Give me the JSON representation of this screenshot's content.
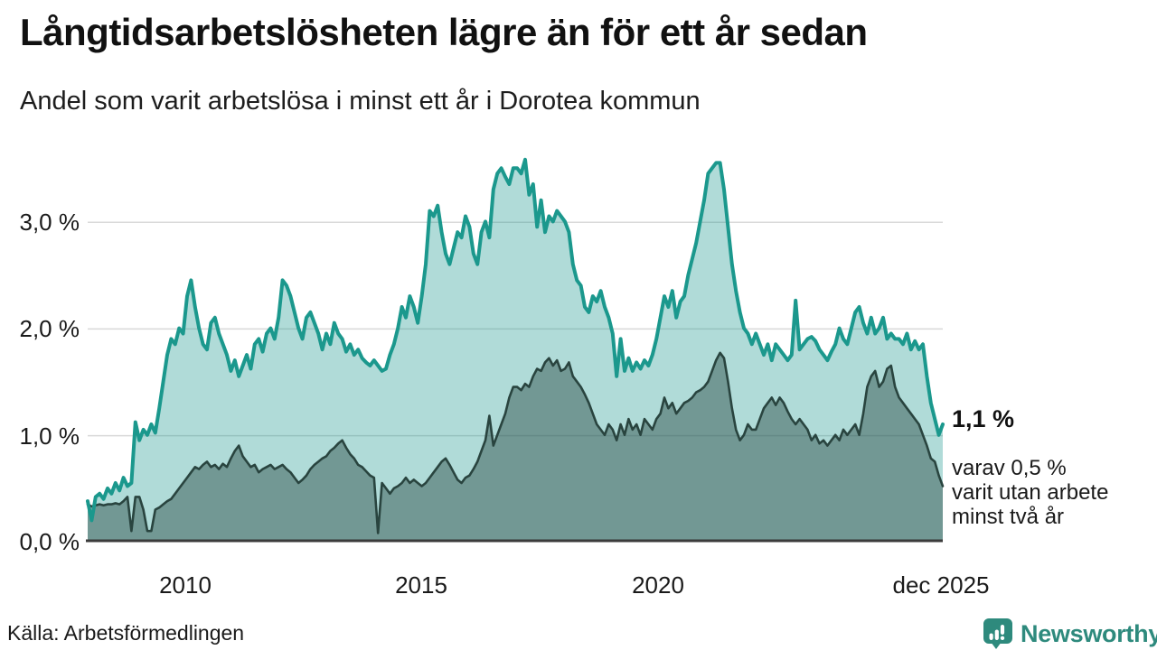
{
  "header": {
    "title": "Långtidsarbetslösheten lägre än för ett år sedan",
    "subtitle": "Andel som varit arbetslösa i minst ett år i Dorotea kommun"
  },
  "chart_data": {
    "type": "area",
    "title": "Långtidsarbetslösheten lägre än för ett år sedan",
    "subtitle": "Andel som varit arbetslösa i minst ett år i Dorotea kommun",
    "x_start": "2008-01",
    "x_end": "2025-12",
    "x_frequency": "monthly",
    "x_tick_labels": [
      "2010",
      "2015",
      "2020",
      "dec 2025"
    ],
    "y_tick_labels": [
      "3,0 %",
      "2,0 %",
      "1,0 %",
      "0,0 %"
    ],
    "y_ticks": [
      3.0,
      2.0,
      1.0,
      0.0
    ],
    "ylim": [
      0,
      3.7
    ],
    "grid": "horizontal",
    "legend_position": "none",
    "colors": {
      "total_line": "#1b988d",
      "total_fill": "rgba(29,153,142,0.35)",
      "twoyear_line": "#29443f",
      "twoyear_fill": "rgba(40,70,66,0.45)",
      "gridline": "#d9d9d9",
      "axis": "#3b3b3b"
    },
    "series": [
      {
        "name": "Arbetslösa minst ett år (andel, %)",
        "last_value_label": "1,1 %",
        "values": [
          0.38,
          0.2,
          0.42,
          0.45,
          0.4,
          0.5,
          0.45,
          0.55,
          0.48,
          0.6,
          0.52,
          0.55,
          1.12,
          0.95,
          1.05,
          1.0,
          1.1,
          1.02,
          1.25,
          1.5,
          1.75,
          1.9,
          1.85,
          2.0,
          1.95,
          2.3,
          2.45,
          2.2,
          2.0,
          1.85,
          1.8,
          2.05,
          2.1,
          1.95,
          1.85,
          1.75,
          1.6,
          1.7,
          1.55,
          1.65,
          1.75,
          1.62,
          1.85,
          1.9,
          1.78,
          1.95,
          2.0,
          1.9,
          2.1,
          2.45,
          2.4,
          2.3,
          2.15,
          2.0,
          1.9,
          2.1,
          2.15,
          2.05,
          1.95,
          1.8,
          1.95,
          1.85,
          2.05,
          1.95,
          1.9,
          1.78,
          1.85,
          1.75,
          1.8,
          1.72,
          1.68,
          1.65,
          1.7,
          1.65,
          1.6,
          1.62,
          1.75,
          1.85,
          2.0,
          2.2,
          2.1,
          2.3,
          2.2,
          2.05,
          2.3,
          2.6,
          3.1,
          3.05,
          3.15,
          2.9,
          2.7,
          2.6,
          2.75,
          2.9,
          2.85,
          3.05,
          2.95,
          2.7,
          2.6,
          2.9,
          3.0,
          2.85,
          3.3,
          3.45,
          3.5,
          3.42,
          3.35,
          3.5,
          3.5,
          3.45,
          3.58,
          3.25,
          3.35,
          2.95,
          3.2,
          2.9,
          3.05,
          3.0,
          3.1,
          3.05,
          3.0,
          2.9,
          2.6,
          2.45,
          2.4,
          2.2,
          2.15,
          2.3,
          2.25,
          2.35,
          2.2,
          2.1,
          1.95,
          1.55,
          1.9,
          1.6,
          1.72,
          1.6,
          1.68,
          1.62,
          1.7,
          1.65,
          1.75,
          1.9,
          2.1,
          2.3,
          2.2,
          2.35,
          2.1,
          2.25,
          2.3,
          2.5,
          2.65,
          2.8,
          3.0,
          3.2,
          3.45,
          3.5,
          3.55,
          3.55,
          3.3,
          2.95,
          2.6,
          2.35,
          2.15,
          2.0,
          1.95,
          1.85,
          1.95,
          1.85,
          1.75,
          1.85,
          1.7,
          1.85,
          1.8,
          1.75,
          1.7,
          1.75,
          2.26,
          1.8,
          1.85,
          1.9,
          1.92,
          1.88,
          1.8,
          1.75,
          1.7,
          1.78,
          1.85,
          2.0,
          1.9,
          1.85,
          2.0,
          2.15,
          2.2,
          2.05,
          1.95,
          2.1,
          1.95,
          2.0,
          2.1,
          1.9,
          1.95,
          1.9,
          1.9,
          1.85,
          1.95,
          1.8,
          1.88,
          1.8,
          1.85,
          1.55,
          1.3,
          1.15,
          1.0,
          1.1
        ]
      },
      {
        "name": "Varav utan arbete minst två år (andel, %)",
        "last_value_label": "0,5 %",
        "values": [
          0.35,
          0.33,
          0.34,
          0.35,
          0.34,
          0.35,
          0.35,
          0.36,
          0.35,
          0.38,
          0.42,
          0.1,
          0.42,
          0.42,
          0.3,
          0.1,
          0.1,
          0.3,
          0.32,
          0.35,
          0.38,
          0.4,
          0.45,
          0.5,
          0.55,
          0.6,
          0.65,
          0.7,
          0.68,
          0.72,
          0.75,
          0.7,
          0.72,
          0.68,
          0.73,
          0.7,
          0.78,
          0.85,
          0.9,
          0.8,
          0.75,
          0.7,
          0.72,
          0.65,
          0.68,
          0.7,
          0.72,
          0.68,
          0.7,
          0.72,
          0.68,
          0.65,
          0.6,
          0.55,
          0.58,
          0.62,
          0.68,
          0.72,
          0.75,
          0.78,
          0.8,
          0.85,
          0.88,
          0.92,
          0.95,
          0.88,
          0.82,
          0.78,
          0.72,
          0.7,
          0.66,
          0.62,
          0.6,
          0.08,
          0.55,
          0.5,
          0.45,
          0.5,
          0.52,
          0.55,
          0.6,
          0.55,
          0.58,
          0.55,
          0.52,
          0.55,
          0.6,
          0.65,
          0.7,
          0.75,
          0.78,
          0.72,
          0.65,
          0.58,
          0.55,
          0.6,
          0.62,
          0.68,
          0.75,
          0.85,
          0.95,
          1.18,
          0.9,
          1.0,
          1.1,
          1.2,
          1.35,
          1.45,
          1.45,
          1.42,
          1.48,
          1.45,
          1.55,
          1.62,
          1.6,
          1.68,
          1.72,
          1.65,
          1.7,
          1.6,
          1.62,
          1.68,
          1.55,
          1.5,
          1.45,
          1.38,
          1.3,
          1.2,
          1.1,
          1.05,
          1.0,
          1.1,
          1.05,
          0.95,
          1.1,
          1.0,
          1.15,
          1.05,
          1.1,
          1.0,
          1.15,
          1.1,
          1.05,
          1.15,
          1.2,
          1.35,
          1.25,
          1.3,
          1.2,
          1.25,
          1.3,
          1.32,
          1.35,
          1.4,
          1.42,
          1.45,
          1.5,
          1.6,
          1.7,
          1.77,
          1.72,
          1.5,
          1.25,
          1.05,
          0.95,
          1.0,
          1.1,
          1.05,
          1.05,
          1.15,
          1.25,
          1.3,
          1.35,
          1.28,
          1.35,
          1.3,
          1.22,
          1.15,
          1.1,
          1.15,
          1.1,
          1.05,
          0.95,
          1.0,
          0.92,
          0.95,
          0.9,
          0.95,
          1.0,
          0.95,
          1.05,
          1.0,
          1.05,
          1.1,
          1.0,
          1.2,
          1.45,
          1.55,
          1.6,
          1.45,
          1.5,
          1.62,
          1.65,
          1.45,
          1.35,
          1.3,
          1.25,
          1.2,
          1.15,
          1.1,
          1.0,
          0.9,
          0.78,
          0.75,
          0.62,
          0.52
        ]
      }
    ],
    "annotation": {
      "value_label": "1,1 %",
      "sub_lines": [
        "varav 0,5 %",
        "varit utan arbete",
        "minst två år"
      ]
    }
  },
  "footer": {
    "source": "Källa: Arbetsförmedlingen",
    "logo_text": "Newsworthy"
  }
}
